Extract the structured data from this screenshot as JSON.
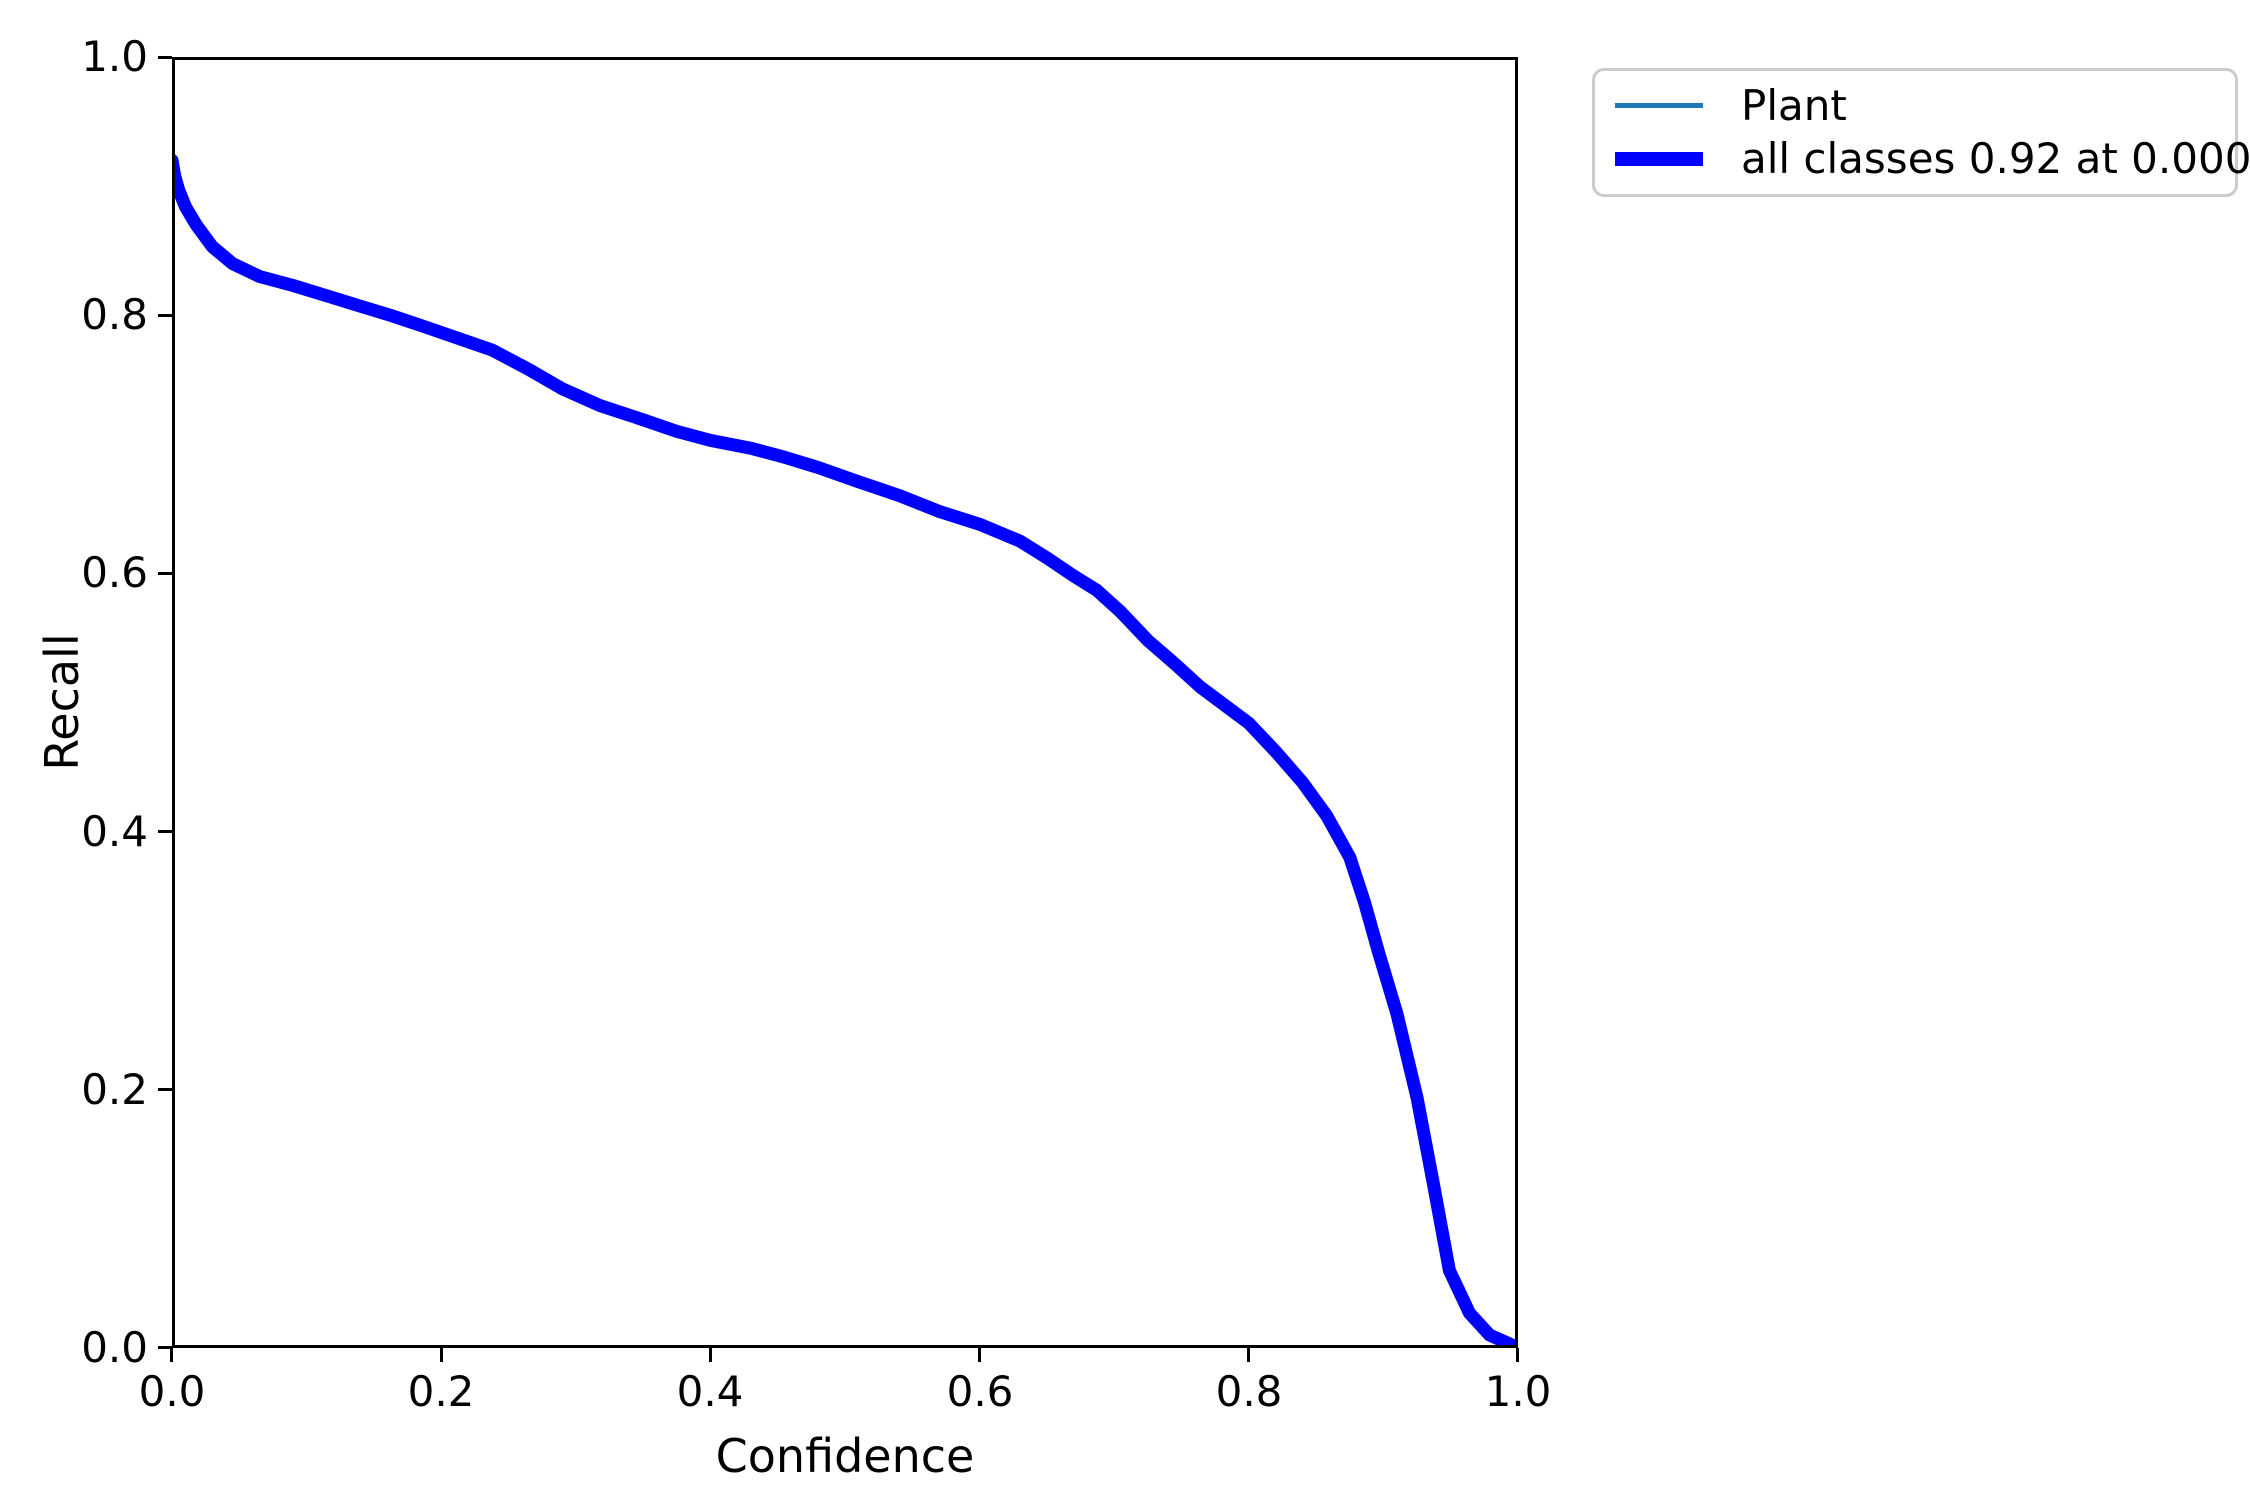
{
  "figure": {
    "background": "#ffffff"
  },
  "axes": {
    "xlabel": "Confidence",
    "ylabel": "Recall",
    "x_ticks": [
      "0.0",
      "0.2",
      "0.4",
      "0.6",
      "0.8",
      "1.0"
    ],
    "y_ticks": [
      "1.0",
      "0.8",
      "0.6",
      "0.4",
      "0.2",
      "0.0"
    ]
  },
  "legend": {
    "items": [
      {
        "label": "Plant",
        "color": "#1f77b4",
        "style": "thin"
      },
      {
        "label": "all classes 0.92 at 0.000",
        "color": "#0000ff",
        "style": "thick"
      }
    ]
  },
  "chart_data": {
    "type": "line",
    "title": "",
    "xlabel": "Confidence",
    "ylabel": "Recall",
    "xlim": [
      0.0,
      1.0
    ],
    "ylim": [
      0.0,
      1.0
    ],
    "x_tick_values": [
      0.0,
      0.2,
      0.4,
      0.6,
      0.8,
      1.0
    ],
    "y_tick_values": [
      0.0,
      0.2,
      0.4,
      0.6,
      0.8,
      1.0
    ],
    "grid": false,
    "legend_position": "outside upper right",
    "annotation": "all classes peak recall 0.92 at confidence 0.000",
    "series": [
      {
        "name": "Plant",
        "color": "#1f77b4",
        "linewidth": 4,
        "note": "per-class curve, coincides with all-classes curve",
        "x": [
          0.0,
          0.002,
          0.005,
          0.01,
          0.018,
          0.03,
          0.045,
          0.065,
          0.09,
          0.115,
          0.14,
          0.162,
          0.185,
          0.21,
          0.238,
          0.265,
          0.29,
          0.318,
          0.35,
          0.375,
          0.4,
          0.43,
          0.455,
          0.48,
          0.51,
          0.541,
          0.57,
          0.6,
          0.63,
          0.65,
          0.67,
          0.687,
          0.705,
          0.725,
          0.745,
          0.764,
          0.782,
          0.8,
          0.82,
          0.84,
          0.858,
          0.875,
          0.886,
          0.896,
          0.91,
          0.925,
          0.937,
          0.949,
          0.964,
          0.979,
          0.992,
          0.998
        ],
        "y": [
          0.92,
          0.908,
          0.897,
          0.884,
          0.87,
          0.853,
          0.84,
          0.83,
          0.823,
          0.815,
          0.807,
          0.8,
          0.792,
          0.783,
          0.773,
          0.758,
          0.743,
          0.73,
          0.719,
          0.71,
          0.703,
          0.697,
          0.69,
          0.682,
          0.671,
          0.66,
          0.648,
          0.638,
          0.625,
          0.612,
          0.598,
          0.587,
          0.57,
          0.548,
          0.53,
          0.512,
          0.498,
          0.484,
          0.462,
          0.438,
          0.412,
          0.38,
          0.345,
          0.308,
          0.259,
          0.194,
          0.128,
          0.06,
          0.027,
          0.01,
          0.004,
          0.001
        ]
      },
      {
        "name": "all classes 0.92 at 0.000",
        "color": "#0000ff",
        "linewidth": 13,
        "x": [
          0.0,
          0.002,
          0.005,
          0.01,
          0.018,
          0.03,
          0.045,
          0.065,
          0.09,
          0.115,
          0.14,
          0.162,
          0.185,
          0.21,
          0.238,
          0.265,
          0.29,
          0.318,
          0.35,
          0.375,
          0.4,
          0.43,
          0.455,
          0.48,
          0.51,
          0.541,
          0.57,
          0.6,
          0.63,
          0.65,
          0.67,
          0.687,
          0.705,
          0.725,
          0.745,
          0.764,
          0.782,
          0.8,
          0.82,
          0.84,
          0.858,
          0.875,
          0.886,
          0.896,
          0.91,
          0.925,
          0.937,
          0.949,
          0.964,
          0.979,
          0.992,
          0.998
        ],
        "y": [
          0.92,
          0.908,
          0.897,
          0.884,
          0.87,
          0.853,
          0.84,
          0.83,
          0.823,
          0.815,
          0.807,
          0.8,
          0.792,
          0.783,
          0.773,
          0.758,
          0.743,
          0.73,
          0.719,
          0.71,
          0.703,
          0.697,
          0.69,
          0.682,
          0.671,
          0.66,
          0.648,
          0.638,
          0.625,
          0.612,
          0.598,
          0.587,
          0.57,
          0.548,
          0.53,
          0.512,
          0.498,
          0.484,
          0.462,
          0.438,
          0.412,
          0.38,
          0.345,
          0.308,
          0.259,
          0.194,
          0.128,
          0.06,
          0.027,
          0.01,
          0.004,
          0.001
        ]
      }
    ]
  }
}
